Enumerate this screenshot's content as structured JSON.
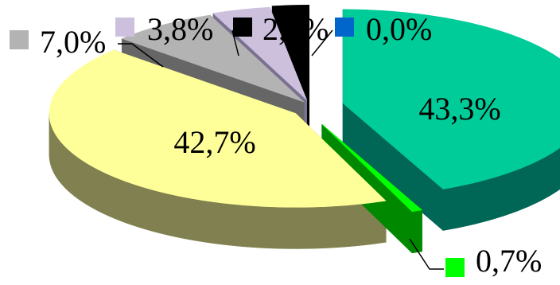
{
  "chart_data": {
    "type": "pie",
    "style": "3d-exploded",
    "title": "",
    "slices": [
      {
        "label": "43,3%",
        "value": 43.3,
        "color": "#00cc99",
        "side": "#006655"
      },
      {
        "label": "0,7%",
        "value": 0.7,
        "color": "#00ff00",
        "side": "#008800"
      },
      {
        "label": "42,7%",
        "value": 42.7,
        "color": "#ffff99",
        "side": "#808050"
      },
      {
        "label": "7,0%",
        "value": 7.0,
        "color": "#b3b3b3",
        "side": "#666666"
      },
      {
        "label": "3,8%",
        "value": 3.8,
        "color": "#ccc0dd",
        "side": "#7a7090"
      },
      {
        "label": "2,4%",
        "value": 2.4,
        "color": "#000000",
        "side": "#000000"
      },
      {
        "label": "0,0%",
        "value": 0.0,
        "color": "#0066cc",
        "side": "#003366"
      }
    ]
  }
}
